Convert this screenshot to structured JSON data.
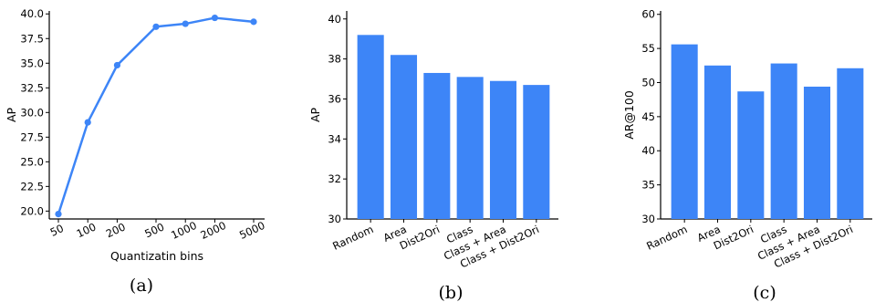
{
  "accent_color": "#3d85f7",
  "chart_data": [
    {
      "type": "line",
      "caption": "(a)",
      "xlabel": "Quantizatin bins",
      "ylabel": "AP",
      "x_scale": "log",
      "x": [
        50,
        100,
        200,
        500,
        1000,
        2000,
        5000
      ],
      "x_tick_labels": [
        "50",
        "100",
        "200",
        "500",
        "1000",
        "2000",
        "5000"
      ],
      "values": [
        19.7,
        29.0,
        34.8,
        38.7,
        39.0,
        39.6,
        39.2
      ],
      "ylim": [
        19.2,
        40.3
      ],
      "y_ticks": [
        "20.0",
        "22.5",
        "25.0",
        "27.5",
        "30.0",
        "32.5",
        "35.0",
        "37.5",
        "40.0"
      ],
      "grid": false
    },
    {
      "type": "bar",
      "caption": "(b)",
      "xlabel": "",
      "ylabel": "AP",
      "categories": [
        "Random",
        "Area",
        "Dist2Ori",
        "Class",
        "Class + Area",
        "Class + Dist2Ori"
      ],
      "values": [
        39.2,
        38.2,
        37.3,
        37.1,
        36.9,
        36.7
      ],
      "ylim": [
        30,
        40.4
      ],
      "y_ticks": [
        "30",
        "32",
        "34",
        "36",
        "38",
        "40"
      ],
      "grid": false
    },
    {
      "type": "bar",
      "caption": "(c)",
      "xlabel": "",
      "ylabel": "AR@100",
      "categories": [
        "Random",
        "Area",
        "Dist2Ori",
        "Class",
        "Class + Area",
        "Class + Dist2Ori"
      ],
      "values": [
        55.6,
        52.5,
        48.7,
        52.8,
        49.4,
        52.1
      ],
      "ylim": [
        30,
        60.5
      ],
      "y_ticks": [
        "30",
        "35",
        "40",
        "45",
        "50",
        "55",
        "60"
      ],
      "grid": false
    }
  ]
}
